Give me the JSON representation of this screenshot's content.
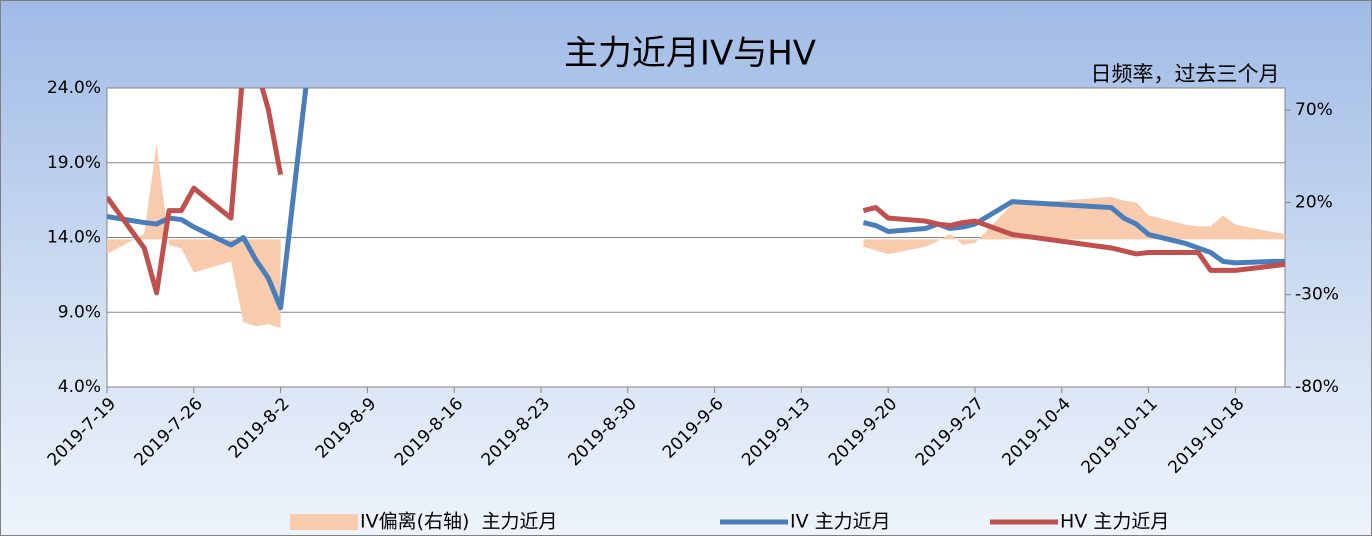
{
  "chart_data": {
    "type": "line",
    "title": "主力近月IV与HV",
    "subtitle": "日频率，过去三个月",
    "x": [
      "2019-7-19",
      "2019-7-22",
      "2019-7-23",
      "2019-7-24",
      "2019-7-25",
      "2019-7-26",
      "2019-7-29",
      "2019-7-30",
      "2019-7-31",
      "2019-8-1",
      "2019-8-2",
      "2019-8-5",
      "2019-8-6",
      "2019-9-18",
      "2019-9-19",
      "2019-9-20",
      "2019-9-23",
      "2019-9-24",
      "2019-9-25",
      "2019-9-26",
      "2019-9-27",
      "2019-9-30",
      "2019-10-8",
      "2019-10-9",
      "2019-10-10",
      "2019-10-11",
      "2019-10-14",
      "2019-10-15",
      "2019-10-16",
      "2019-10-17",
      "2019-10-18",
      "2019-10-21",
      "2019-10-22"
    ],
    "series": [
      {
        "name": "IV偏离(右轴)  主力近月",
        "kind": "area",
        "axis": "y2",
        "color": "#f8cbad",
        "values": [
          -8,
          3,
          52,
          -3,
          -5,
          -18,
          -12,
          -45,
          -47,
          -46,
          -48,
          null,
          null,
          -4,
          -6,
          -8,
          -4,
          -1,
          3,
          -3,
          -2,
          19,
          23,
          21,
          20,
          13,
          8,
          7,
          7,
          13,
          8,
          4,
          3
        ]
      },
      {
        "name": "IV 主力近月",
        "kind": "line",
        "color": "#4a7ebb",
        "values": [
          15.4,
          15.0,
          14.9,
          15.3,
          15.2,
          14.7,
          13.5,
          14.0,
          12.5,
          11.3,
          9.3,
          31,
          null,
          15.0,
          14.8,
          14.4,
          14.6,
          14.9,
          14.6,
          14.7,
          14.9,
          16.4,
          16.0,
          15.3,
          14.9,
          14.2,
          13.6,
          13.3,
          13.0,
          12.4,
          12.3,
          12.4,
          12.4
        ]
      },
      {
        "name": "HV 主力近月",
        "kind": "line",
        "color": "#c0504d",
        "values": [
          16.7,
          13.3,
          10.3,
          15.8,
          15.8,
          17.3,
          15.3,
          25.5,
          25.5,
          22.6,
          18.2,
          null,
          null,
          15.8,
          16.0,
          15.3,
          15.1,
          14.9,
          14.8,
          15.0,
          15.1,
          14.2,
          13.3,
          13.1,
          12.9,
          13.0,
          13.0,
          13.0,
          11.8,
          11.8,
          11.8,
          12.1,
          12.2
        ]
      }
    ],
    "xlim": [
      "2019-7-19",
      "2019-10-22"
    ],
    "xticks": [
      "2019-7-19",
      "2019-7-26",
      "2019-8-2",
      "2019-8-9",
      "2019-8-16",
      "2019-8-23",
      "2019-8-30",
      "2019-9-6",
      "2019-9-13",
      "2019-9-20",
      "2019-9-27",
      "2019-10-4",
      "2019-10-11",
      "2019-10-18"
    ],
    "ylim": [
      4,
      24
    ],
    "yticks": [
      {
        "value": 4,
        "label": "4.0%"
      },
      {
        "value": 9,
        "label": "9.0%"
      },
      {
        "value": 14,
        "label": "14.0%"
      },
      {
        "value": 19,
        "label": "19.0%"
      },
      {
        "value": 24,
        "label": "24.0%"
      }
    ],
    "y2lim": [
      -80,
      82
    ],
    "y2ticks": [
      {
        "value": -80,
        "label": "-80%"
      },
      {
        "value": -30,
        "label": "-30%"
      },
      {
        "value": 20,
        "label": "20%"
      },
      {
        "value": 70,
        "label": "70%"
      }
    ],
    "grid": true,
    "legend": "bottom"
  }
}
